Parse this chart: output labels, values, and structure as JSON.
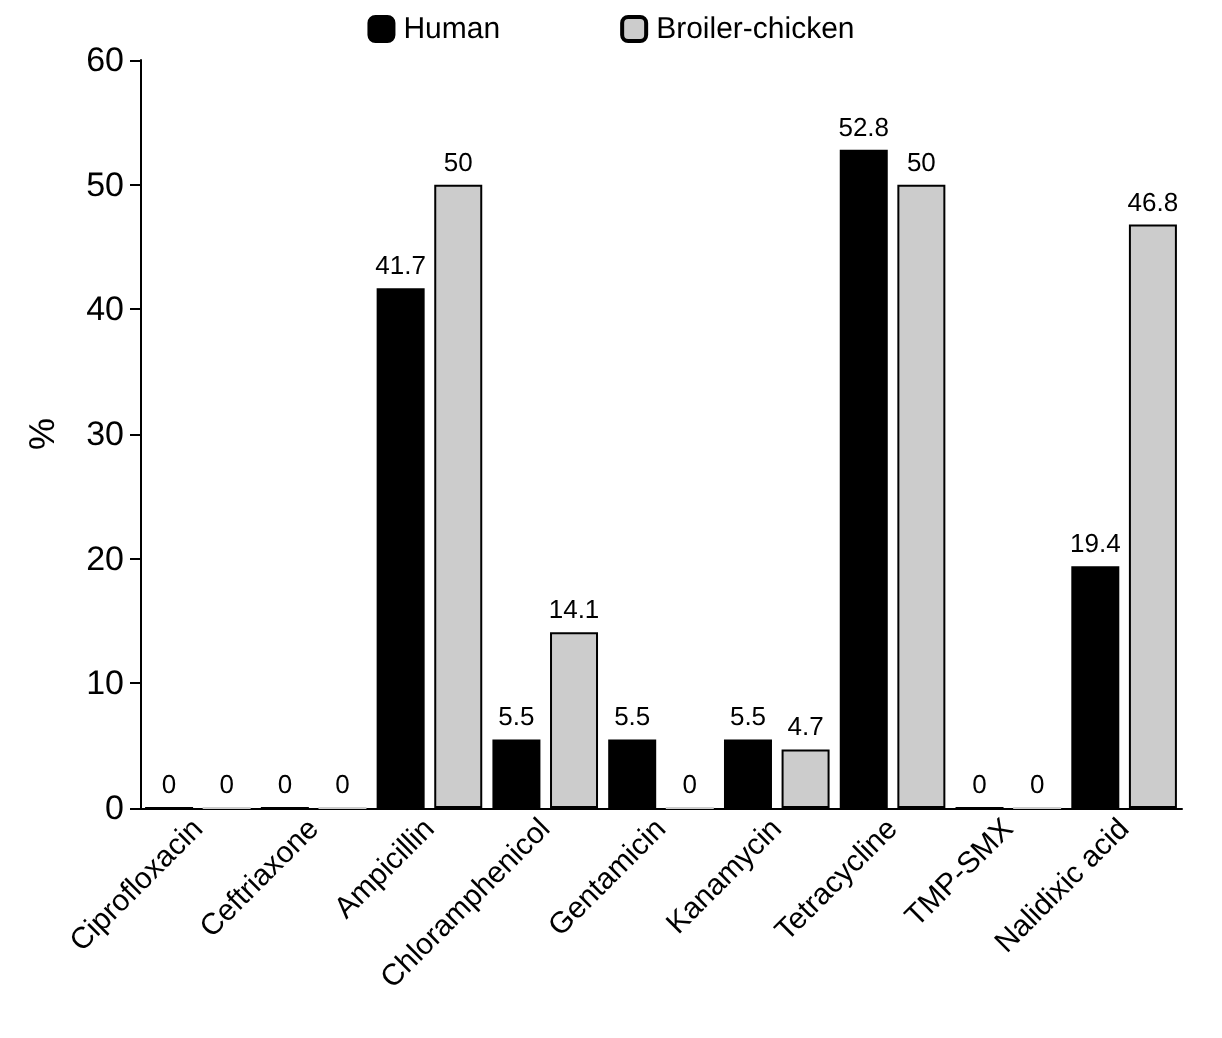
{
  "chart_data": {
    "type": "bar",
    "ylabel": "%",
    "categories": [
      "Ciprofloxacin",
      "Ceftriaxone",
      "Ampicillin",
      "Chloramphenicol",
      "Gentamicin",
      "Kanamycin",
      "Tetracycline",
      "TMP-SMX",
      "Nalidixic acid"
    ],
    "series": [
      {
        "name": "Human",
        "color": "#000000",
        "values": [
          0,
          0,
          41.7,
          5.5,
          5.5,
          5.5,
          52.8,
          0,
          19.4
        ]
      },
      {
        "name": "Broiler-chicken",
        "color": "#cccccc",
        "values": [
          0,
          0,
          50,
          14.1,
          0,
          4.7,
          50,
          0,
          46.8
        ]
      }
    ],
    "ylim": [
      0,
      60
    ],
    "yticks": [
      0,
      10,
      20,
      30,
      40,
      50,
      60
    ],
    "grid": false,
    "legend": "top",
    "data_labels": true
  }
}
